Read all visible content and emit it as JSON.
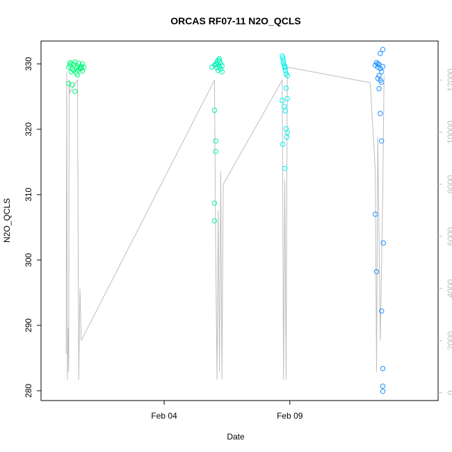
{
  "chart_data": {
    "type": "scatter",
    "title": "ORCAS RF07-11 N2O_QCLS",
    "xlabel": "Date",
    "ylabel": "N2O_QCLS",
    "x_tick_labels": [
      "Feb 04",
      "Feb 09"
    ],
    "x_tick_values": [
      4,
      9
    ],
    "xlim": [
      -0.9,
      14.9
    ],
    "ylim": [
      278.5,
      333.5
    ],
    "y_ticks": [
      280,
      290,
      300,
      310,
      320,
      330
    ],
    "y2_label": "",
    "y2lim": [
      -300,
      13500
    ],
    "y2_ticks": [
      0,
      2000,
      4000,
      6000,
      8000,
      10000,
      12000
    ],
    "grid": false,
    "series": [
      {
        "color": "#00FA7A",
        "x": [
          0.2,
          0.25,
          0.3,
          0.35,
          0.4,
          0.45,
          0.5,
          0.55,
          0.6,
          0.65,
          0.7,
          0.75,
          0.8,
          0.3,
          0.4,
          0.5,
          0.6,
          0.7,
          0.2,
          0.35,
          0.55,
          0.75,
          0.45,
          0.65,
          0.25,
          0.4
        ],
        "y": [
          329.5,
          329.8,
          330.0,
          329.2,
          329.9,
          330.3,
          329.4,
          329.7,
          330.1,
          329.3,
          329.6,
          330.0,
          329.5,
          328.8,
          329.0,
          328.6,
          329.1,
          329.3,
          327.0,
          326.8,
          328.3,
          328.9,
          325.8,
          329.4,
          330.2,
          329.9
        ]
      },
      {
        "color": "#00F0B4",
        "x": [
          5.9,
          6.0,
          6.05,
          6.1,
          6.15,
          6.2,
          6.25,
          6.3,
          6.1,
          6.2,
          6.15,
          6.25,
          6.0,
          6.05,
          6.05,
          6.0,
          6.0,
          6.1,
          6.2,
          6.3
        ],
        "y": [
          329.5,
          329.8,
          330.0,
          330.3,
          330.6,
          330.8,
          329.2,
          328.8,
          329.4,
          329.6,
          329.0,
          330.1,
          322.9,
          318.2,
          316.6,
          308.7,
          306.0,
          329.9,
          330.4,
          329.7
        ]
      },
      {
        "color": "#00EEEE",
        "x": [
          8.7,
          8.72,
          8.75,
          8.78,
          8.8,
          8.82,
          8.85,
          8.9,
          8.75,
          8.8,
          8.85,
          8.9,
          8.7,
          8.78,
          8.82,
          8.85,
          8.9,
          8.88,
          8.72,
          8.8
        ],
        "y": [
          331.2,
          330.9,
          330.5,
          329.8,
          329.4,
          329.0,
          328.5,
          328.2,
          330.1,
          329.6,
          326.3,
          324.7,
          324.4,
          323.5,
          322.8,
          320.1,
          319.5,
          318.8,
          317.7,
          314.0
        ]
      },
      {
        "color": "#1E90FF",
        "x": [
          12.4,
          12.45,
          12.5,
          12.55,
          12.6,
          12.65,
          12.7,
          12.5,
          12.6,
          12.65,
          12.55,
          12.6,
          12.7,
          12.6,
          12.65,
          12.4,
          12.45,
          12.65,
          12.7,
          12.7,
          12.7,
          12.72,
          12.5,
          12.55
        ],
        "y": [
          329.8,
          330.2,
          329.5,
          329.9,
          329.3,
          328.8,
          329.6,
          327.8,
          327.5,
          327.2,
          326.2,
          331.6,
          332.2,
          322.4,
          318.2,
          307.0,
          298.2,
          292.2,
          283.4,
          280.7,
          279.9,
          302.6,
          330.0,
          328.2
        ]
      }
    ],
    "line_series": {
      "color": "#BEBEBE",
      "x": [
        0.1,
        0.12,
        0.15,
        0.18,
        0.2,
        0.22,
        0.25,
        0.4,
        0.55,
        0.6,
        0.65,
        0.7,
        0.7,
        6.0,
        6.05,
        6.1,
        6.15,
        6.2,
        6.25,
        6.3,
        6.35,
        8.7,
        8.75,
        8.8,
        8.85,
        8.9,
        12.2,
        12.4,
        12.45,
        12.5,
        12.6,
        12.7,
        12.75
      ],
      "y": [
        1500,
        12300,
        500,
        2500,
        800,
        12000,
        11500,
        11800,
        12000,
        500,
        4000,
        2000,
        2000,
        12000,
        5500,
        500,
        7000,
        800,
        8500,
        500,
        8000,
        12000,
        500,
        8200,
        500,
        12500,
        11900,
        8500,
        800,
        9800,
        2000,
        7800,
        12200
      ]
    }
  }
}
